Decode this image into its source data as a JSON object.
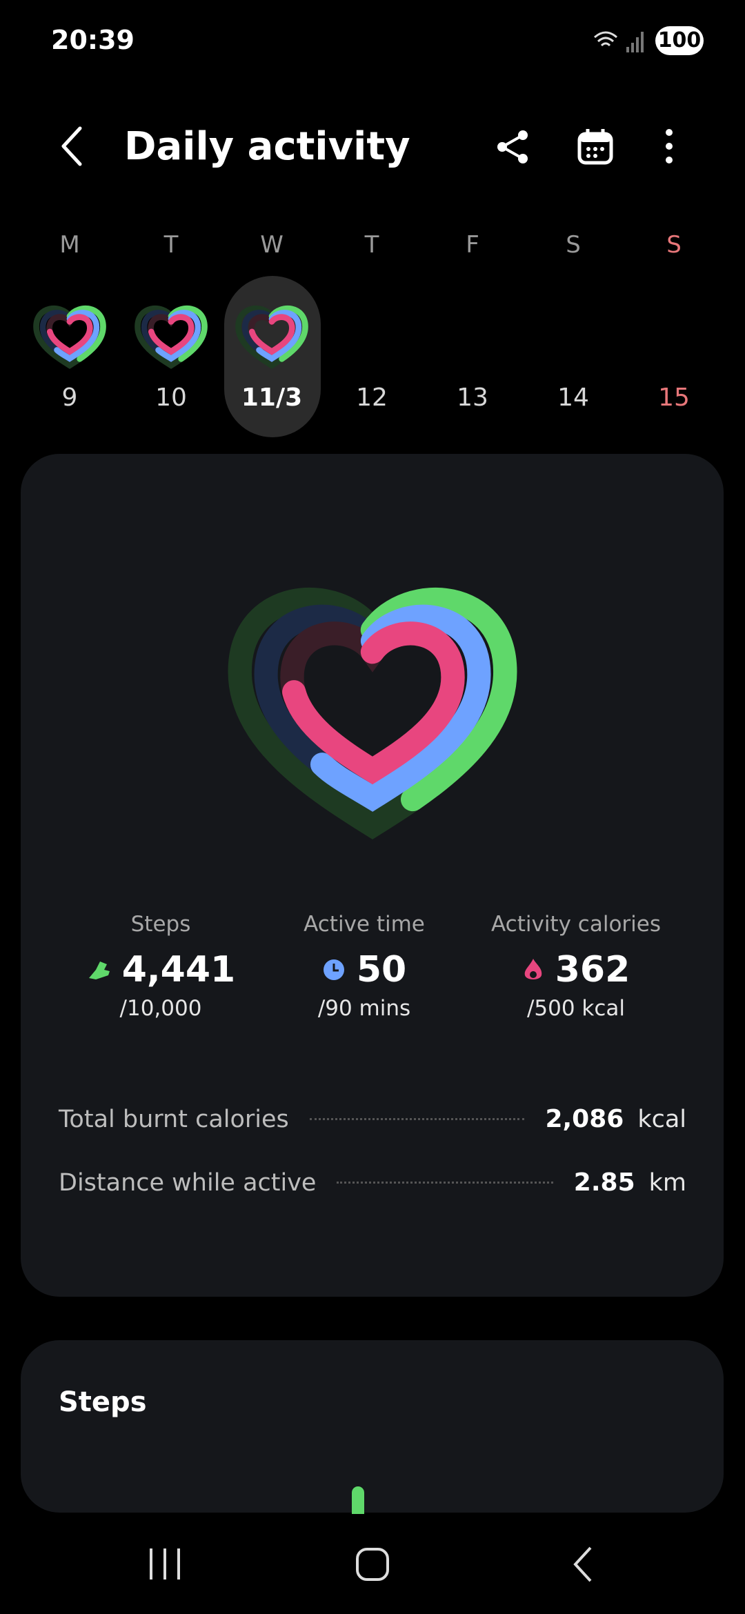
{
  "status_bar": {
    "time": "20:39",
    "battery": "100"
  },
  "header": {
    "title": "Daily activity"
  },
  "week": {
    "days": [
      {
        "letter": "M",
        "date": "9"
      },
      {
        "letter": "T",
        "date": "10"
      },
      {
        "letter": "W",
        "date": "11/3"
      },
      {
        "letter": "T",
        "date": "12"
      },
      {
        "letter": "F",
        "date": "13"
      },
      {
        "letter": "S",
        "date": "14"
      },
      {
        "letter": "S",
        "date": "15"
      }
    ]
  },
  "summary": {
    "stats": [
      {
        "label": "Steps",
        "value": "4,441",
        "goal": "/10,000"
      },
      {
        "label": "Active time",
        "value": "50",
        "goal": "/90 mins"
      },
      {
        "label": "Activity calories",
        "value": "362",
        "goal": "/500 kcal"
      }
    ],
    "rows": [
      {
        "label": "Total burnt calories",
        "value": "2,086",
        "unit": "kcal"
      },
      {
        "label": "Distance while active",
        "value": "2.85",
        "unit": "km"
      }
    ]
  },
  "steps_card": {
    "title": "Steps"
  }
}
